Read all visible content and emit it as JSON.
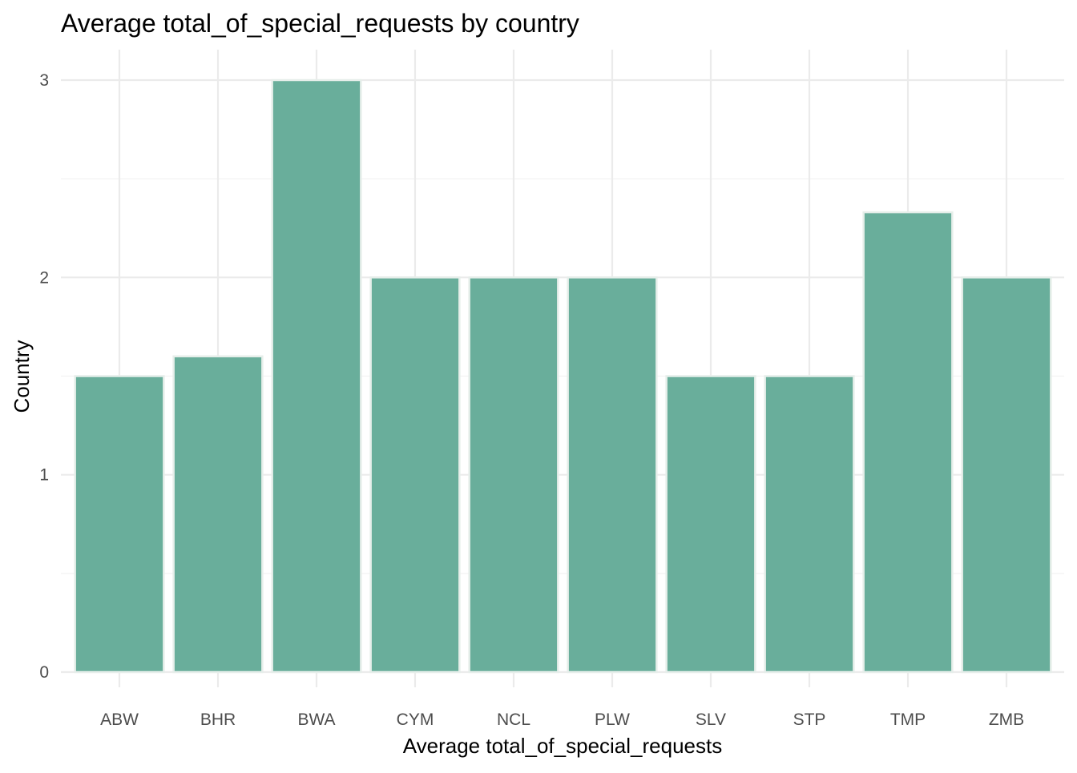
{
  "chart_data": {
    "type": "bar",
    "title": "Average total_of_special_requests by country",
    "xlabel": "Average total_of_special_requests",
    "ylabel": "Country",
    "categories": [
      "ABW",
      "BHR",
      "BWA",
      "CYM",
      "NCL",
      "PLW",
      "SLV",
      "STP",
      "TMP",
      "ZMB"
    ],
    "values": [
      1.5,
      1.6,
      3.0,
      2.0,
      2.0,
      2.0,
      1.5,
      1.5,
      2.33,
      2.0
    ],
    "ylim": [
      0,
      3
    ],
    "yticks": [
      "0",
      "1",
      "2",
      "3"
    ],
    "grid": true,
    "legend": "none",
    "bar_color": "#69ae9b",
    "bar_edge_color": "#e6eeea"
  }
}
